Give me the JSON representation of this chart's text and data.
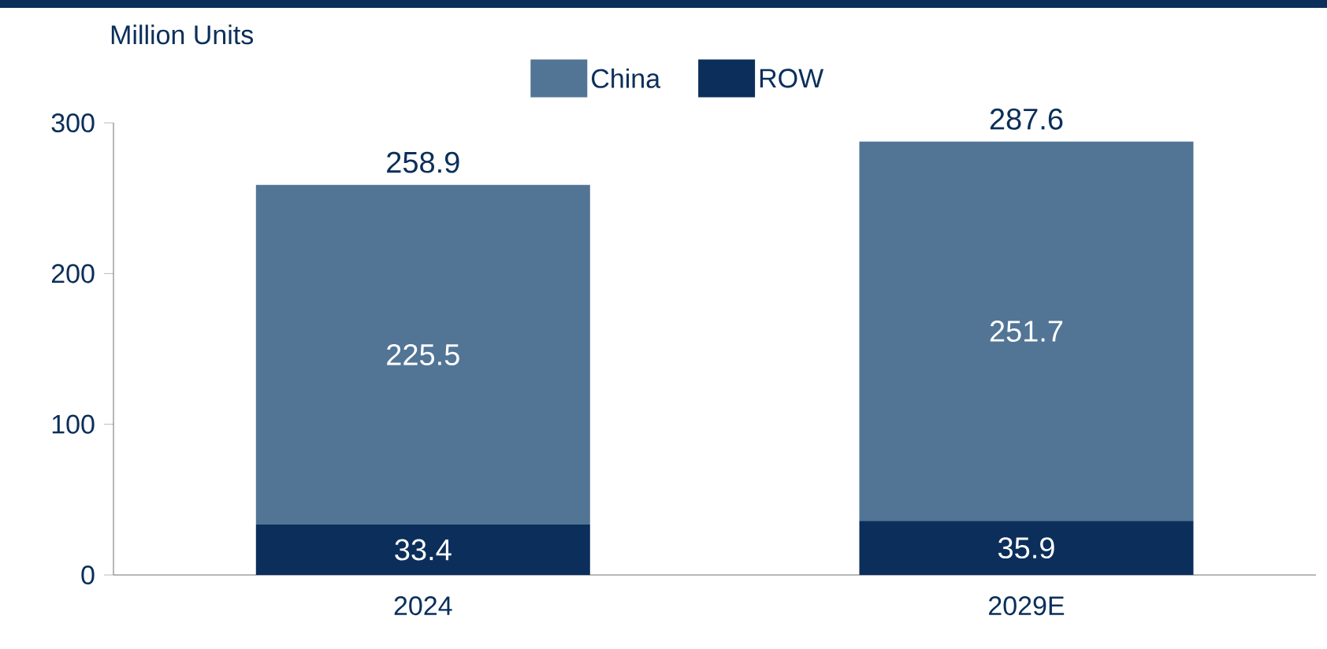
{
  "chart_data": {
    "type": "bar",
    "stacked": true,
    "ylabel": "Million Units",
    "categories": [
      "2024",
      "2029E"
    ],
    "series": [
      {
        "name": "ROW",
        "color": "#0b2f5a",
        "values": [
          33.4,
          35.9
        ]
      },
      {
        "name": "China",
        "color": "#527596",
        "values": [
          225.5,
          251.7
        ]
      }
    ],
    "ylim": [
      0,
      300
    ],
    "yticks": [
      0,
      100,
      200,
      300
    ],
    "legend": "top",
    "data_labels": true,
    "totals": [
      "258.9",
      "287.6"
    ]
  }
}
